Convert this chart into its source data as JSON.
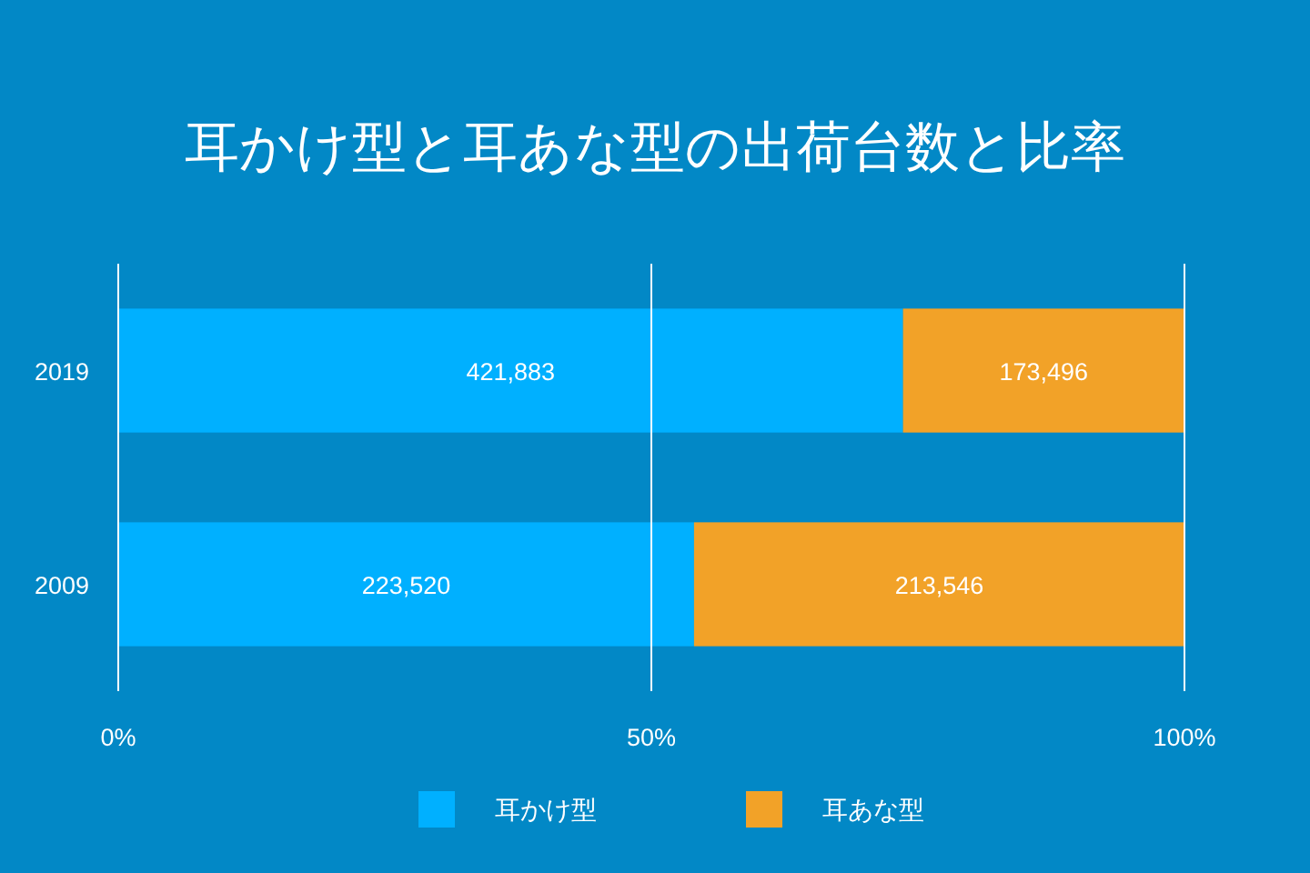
{
  "chart_data": {
    "type": "bar",
    "orientation": "horizontal",
    "stacked": true,
    "title": "耳かけ型と耳あな型の出荷台数と比率",
    "categories": [
      "2019",
      "2009"
    ],
    "series": [
      {
        "name": "耳かけ型",
        "color": "#00b0ff",
        "values": [
          73.6,
          54.0
        ]
      },
      {
        "name": "耳あな型",
        "color": "#f2a228",
        "values": [
          26.4,
          46.0
        ]
      }
    ],
    "annotations": [
      "421,883",
      "173,496",
      "223,520",
      "213,546"
    ],
    "xlim": [
      0,
      100
    ],
    "xticks": [
      {
        "value": 0,
        "label": "0%"
      },
      {
        "value": 50,
        "label": "50%"
      },
      {
        "value": 100,
        "label": "100%"
      }
    ],
    "grid": "x",
    "legend": "bottom"
  }
}
